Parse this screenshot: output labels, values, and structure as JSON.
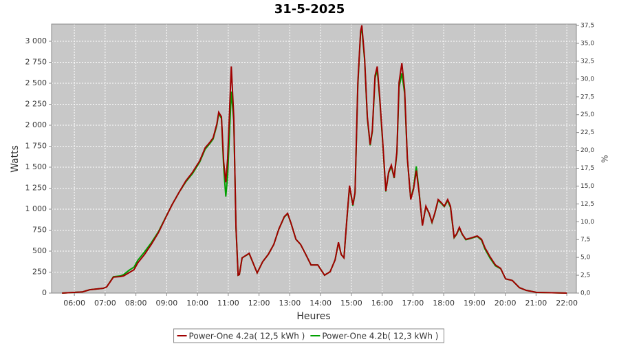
{
  "chart_data": {
    "type": "line",
    "title": "31-5-2025",
    "x_label": "Heures",
    "y_label": "Watts",
    "y2_label": "%",
    "x": [
      5.6,
      6.27,
      6.5,
      6.94,
      7.05,
      7.27,
      7.5,
      7.6,
      7.79,
      7.94,
      8.06,
      8.28,
      8.5,
      8.73,
      8.95,
      9.17,
      9.4,
      9.62,
      9.84,
      10.07,
      10.25,
      10.4,
      10.51,
      10.63,
      10.69,
      10.78,
      10.85,
      10.92,
      10.98,
      11.1,
      11.18,
      11.25,
      11.32,
      11.36,
      11.45,
      11.68,
      11.79,
      11.94,
      12.12,
      12.3,
      12.48,
      12.64,
      12.82,
      12.93,
      13.04,
      13.2,
      13.35,
      13.5,
      13.69,
      13.91,
      14.13,
      14.31,
      14.47,
      14.58,
      14.67,
      14.76,
      14.85,
      14.94,
      15.05,
      15.12,
      15.21,
      15.3,
      15.34,
      15.43,
      15.52,
      15.61,
      15.68,
      15.77,
      15.84,
      15.92,
      16.01,
      16.12,
      16.21,
      16.3,
      16.39,
      16.48,
      16.55,
      16.64,
      16.73,
      16.82,
      16.93,
      17.02,
      17.11,
      17.2,
      17.31,
      17.42,
      17.53,
      17.62,
      17.71,
      17.82,
      17.93,
      18.02,
      18.13,
      18.22,
      18.34,
      18.42,
      18.51,
      18.6,
      18.72,
      18.87,
      19.09,
      19.23,
      19.34,
      19.5,
      19.68,
      19.85,
      20.01,
      20.23,
      20.46,
      20.68,
      21.02,
      22.0
    ],
    "series": [
      {
        "name": "Power-One 4.2a( 12,5 kWh )",
        "color": "#a00000",
        "values": [
          0,
          15,
          40,
          57,
          74,
          190,
          197,
          205,
          246,
          279,
          360,
          460,
          580,
          720,
          885,
          1050,
          1200,
          1335,
          1440,
          1575,
          1730,
          1795,
          1850,
          2015,
          2155,
          2100,
          1565,
          1320,
          1605,
          2700,
          2100,
          790,
          213,
          220,
          420,
          475,
          375,
          240,
          375,
          460,
          580,
          760,
          910,
          950,
          830,
          640,
          580,
          475,
          335,
          335,
          213,
          255,
          395,
          605,
          460,
          420,
          870,
          1280,
          1050,
          1200,
          2510,
          3120,
          3190,
          2800,
          2100,
          1770,
          1935,
          2590,
          2700,
          2345,
          1850,
          1215,
          1440,
          1525,
          1375,
          1690,
          2510,
          2740,
          2425,
          1605,
          1115,
          1240,
          1460,
          1200,
          805,
          1035,
          950,
          845,
          950,
          1115,
          1075,
          1035,
          1115,
          1035,
          665,
          705,
          785,
          705,
          640,
          655,
          680,
          640,
          540,
          435,
          335,
          295,
          170,
          150,
          65,
          33,
          8,
          0
        ]
      },
      {
        "name": "Power-One 4.2b( 12,3 kWh )",
        "color": "#00a000",
        "values": [
          0,
          15,
          40,
          57,
          74,
          195,
          205,
          220,
          275,
          310,
          390,
          490,
          600,
          730,
          890,
          1050,
          1200,
          1325,
          1425,
          1560,
          1715,
          1780,
          1835,
          2000,
          2140,
          2080,
          1500,
          1150,
          1400,
          2400,
          2050,
          780,
          213,
          220,
          420,
          470,
          375,
          240,
          375,
          460,
          580,
          760,
          905,
          945,
          830,
          640,
          580,
          475,
          335,
          335,
          213,
          255,
          395,
          600,
          460,
          420,
          860,
          1270,
          1040,
          1190,
          2480,
          3100,
          3150,
          2780,
          2080,
          1760,
          1920,
          2560,
          2660,
          2320,
          1830,
          1210,
          1430,
          1510,
          1370,
          1670,
          2450,
          2620,
          2380,
          1600,
          1120,
          1260,
          1510,
          1210,
          810,
          1030,
          945,
          840,
          945,
          1105,
          1065,
          1030,
          1100,
          1020,
          660,
          700,
          775,
          700,
          635,
          650,
          675,
          630,
          525,
          420,
          325,
          290,
          170,
          150,
          65,
          33,
          8,
          0
        ]
      }
    ],
    "xlim": [
      5.26,
      22.31
    ],
    "xticks": [
      {
        "value": 6,
        "label": "06:00"
      },
      {
        "value": 7,
        "label": "07:00"
      },
      {
        "value": 8,
        "label": "08:00"
      },
      {
        "value": 9,
        "label": "09:00"
      },
      {
        "value": 10,
        "label": "10:00"
      },
      {
        "value": 11,
        "label": "11:00"
      },
      {
        "value": 12,
        "label": "12:00"
      },
      {
        "value": 13,
        "label": "13:00"
      },
      {
        "value": 14,
        "label": "14:00"
      },
      {
        "value": 15,
        "label": "15:00"
      },
      {
        "value": 16,
        "label": "16:00"
      },
      {
        "value": 17,
        "label": "17:00"
      },
      {
        "value": 18,
        "label": "18:00"
      },
      {
        "value": 19,
        "label": "19:00"
      },
      {
        "value": 20,
        "label": "20:00"
      },
      {
        "value": 21,
        "label": "21:00"
      },
      {
        "value": 22,
        "label": "22:00"
      }
    ],
    "ylim": [
      0,
      3205
    ],
    "yticks": [
      0,
      250,
      500,
      750,
      {
        "value": 1000,
        "label": "1 000"
      },
      {
        "value": 1250,
        "label": "1 250"
      },
      {
        "value": 1500,
        "label": "1 500"
      },
      {
        "value": 1750,
        "label": "1 750"
      },
      {
        "value": 2000,
        "label": "2 000"
      },
      {
        "value": 2250,
        "label": "2 250"
      },
      {
        "value": 2500,
        "label": "2 500"
      },
      {
        "value": 2750,
        "label": "2 750"
      },
      {
        "value": 3000,
        "label": "3 000"
      }
    ],
    "y2lim": [
      0,
      37.7
    ],
    "y2ticks": [
      {
        "value": 0,
        "label": "0,0"
      },
      {
        "value": 2.5,
        "label": "2,5"
      },
      {
        "value": 5,
        "label": "5,0"
      },
      {
        "value": 7.5,
        "label": "7,5"
      },
      {
        "value": 10,
        "label": "10,0"
      },
      {
        "value": 12.5,
        "label": "12,5"
      },
      {
        "value": 15,
        "label": "15,0"
      },
      {
        "value": 17.5,
        "label": "17,5"
      },
      {
        "value": 20,
        "label": "20,0"
      },
      {
        "value": 22.5,
        "label": "22,5"
      },
      {
        "value": 25,
        "label": "25,0"
      },
      {
        "value": 27.5,
        "label": "27,5"
      },
      {
        "value": 30,
        "label": "30,0"
      },
      {
        "value": 32.5,
        "label": "32,5"
      },
      {
        "value": 35,
        "label": "35,0"
      },
      {
        "value": 37.5,
        "label": "37,5"
      }
    ],
    "grid": true,
    "background": "#c8c8c8",
    "legend": "bottom"
  }
}
